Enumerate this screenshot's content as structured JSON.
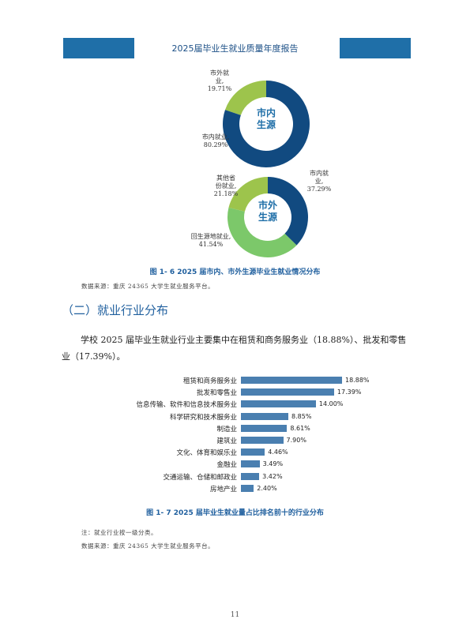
{
  "header": {
    "title": "2025届毕业生就业质量年度报告"
  },
  "donut_local": {
    "center": [
      "市内",
      "生源"
    ],
    "segments": [
      {
        "label": [
          "市外就",
          "业,",
          "19.71%"
        ],
        "value": 19.71,
        "color": "#9dc44c"
      },
      {
        "label": [
          "市内就业,",
          "80.29%"
        ],
        "value": 80.29,
        "color": "#114a80"
      }
    ]
  },
  "donut_outside": {
    "center": [
      "市外",
      "生源"
    ],
    "segments": [
      {
        "label": [
          "市内就",
          "业,",
          "37.29%"
        ],
        "value": 37.29,
        "color": "#114a80"
      },
      {
        "label": [
          "回生源地就业,",
          "41.54%"
        ],
        "value": 41.54,
        "color": "#7cc86a"
      },
      {
        "label": [
          "其他省",
          "份就业,",
          "21.18%"
        ],
        "value": 21.18,
        "color": "#9dc44c"
      }
    ]
  },
  "figure6": {
    "caption": "图 1- 6  2025 届市内、市外生源毕业生就业情况分布",
    "source": "数据来源：重庆 24365 大学生就业服务平台。"
  },
  "section": {
    "title": "（二）就业行业分布"
  },
  "paragraph": "学校 2025 届毕业生就业行业主要集中在租赁和商务服务业（18.88%）、批发和零售业（17.39%）。",
  "chart_data": {
    "type": "bar",
    "orientation": "horizontal",
    "color": "#4a7fb0",
    "categories": [
      "租赁和商务服务业",
      "批发和零售业",
      "信息传输、软件和信息技术服务业",
      "科学研究和技术服务业",
      "制造业",
      "建筑业",
      "文化、体育和娱乐业",
      "金融业",
      "交通运输、仓储和邮政业",
      "房地产业"
    ],
    "values": [
      18.88,
      17.39,
      14.0,
      8.85,
      8.61,
      7.9,
      4.46,
      3.49,
      3.42,
      2.4
    ],
    "labels": [
      "18.88%",
      "17.39%",
      "14.00%",
      "8.85%",
      "8.61%",
      "7.90%",
      "4.46%",
      "3.49%",
      "3.42%",
      "2.40%"
    ]
  },
  "figure7": {
    "caption": "图 1- 7  2025 届毕业生就业量占比排名前十的行业分布",
    "note": "注：就业行业按一级分类。",
    "source": "数据来源：重庆 24365 大学生就业服务平台。"
  },
  "page_number": "11"
}
